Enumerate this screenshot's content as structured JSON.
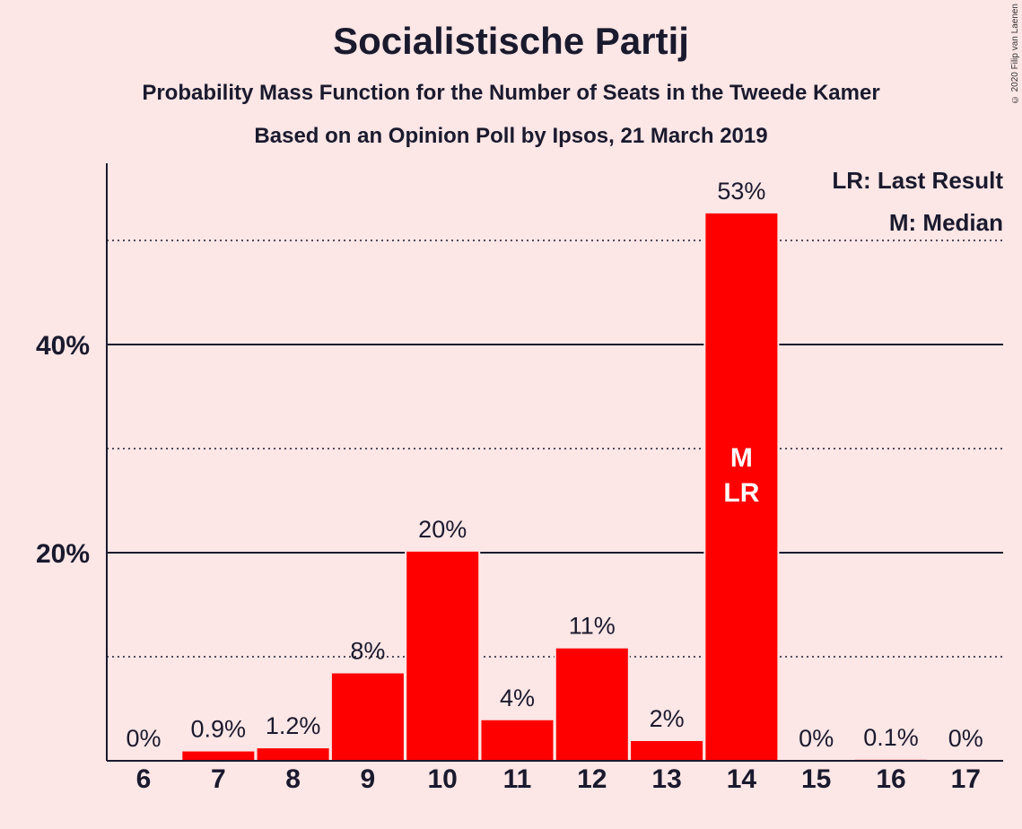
{
  "header": {
    "title": "Socialistische Partij",
    "subtitle": "Probability Mass Function for the Number of Seats in the Tweede Kamer",
    "source": "Based on an Opinion Poll by Ipsos, 21 March 2019",
    "copyright": "© 2020 Filip van Laenen"
  },
  "legend": {
    "last_result": "LR: Last Result",
    "median": "M: Median"
  },
  "colors": {
    "bar": "#ff0000",
    "background": "#fde6e6",
    "text": "#1a1a2e"
  },
  "chart_data": {
    "type": "bar",
    "title": "Socialistische Partij",
    "categories": [
      "6",
      "7",
      "8",
      "9",
      "10",
      "11",
      "12",
      "13",
      "14",
      "15",
      "16",
      "17"
    ],
    "values": [
      0,
      0.9,
      1.2,
      8.4,
      20.1,
      3.9,
      10.8,
      1.9,
      52.6,
      0,
      0.1,
      0
    ],
    "data_labels": [
      "0%",
      "0.9%",
      "1.2%",
      "8%",
      "20%",
      "4%",
      "11%",
      "2%",
      "53%",
      "0%",
      "0.1%",
      "0%"
    ],
    "ylim": [
      0,
      57
    ],
    "y_ticks": [
      {
        "value": 20,
        "label": "20%"
      },
      {
        "value": 40,
        "label": "40%"
      }
    ],
    "solid_gridlines": [
      20,
      40
    ],
    "dotted_gridlines": [
      10,
      30,
      50
    ],
    "markers": [
      {
        "category": "14",
        "lines": [
          "M",
          "LR"
        ]
      }
    ],
    "legend_placement": "top-right"
  }
}
